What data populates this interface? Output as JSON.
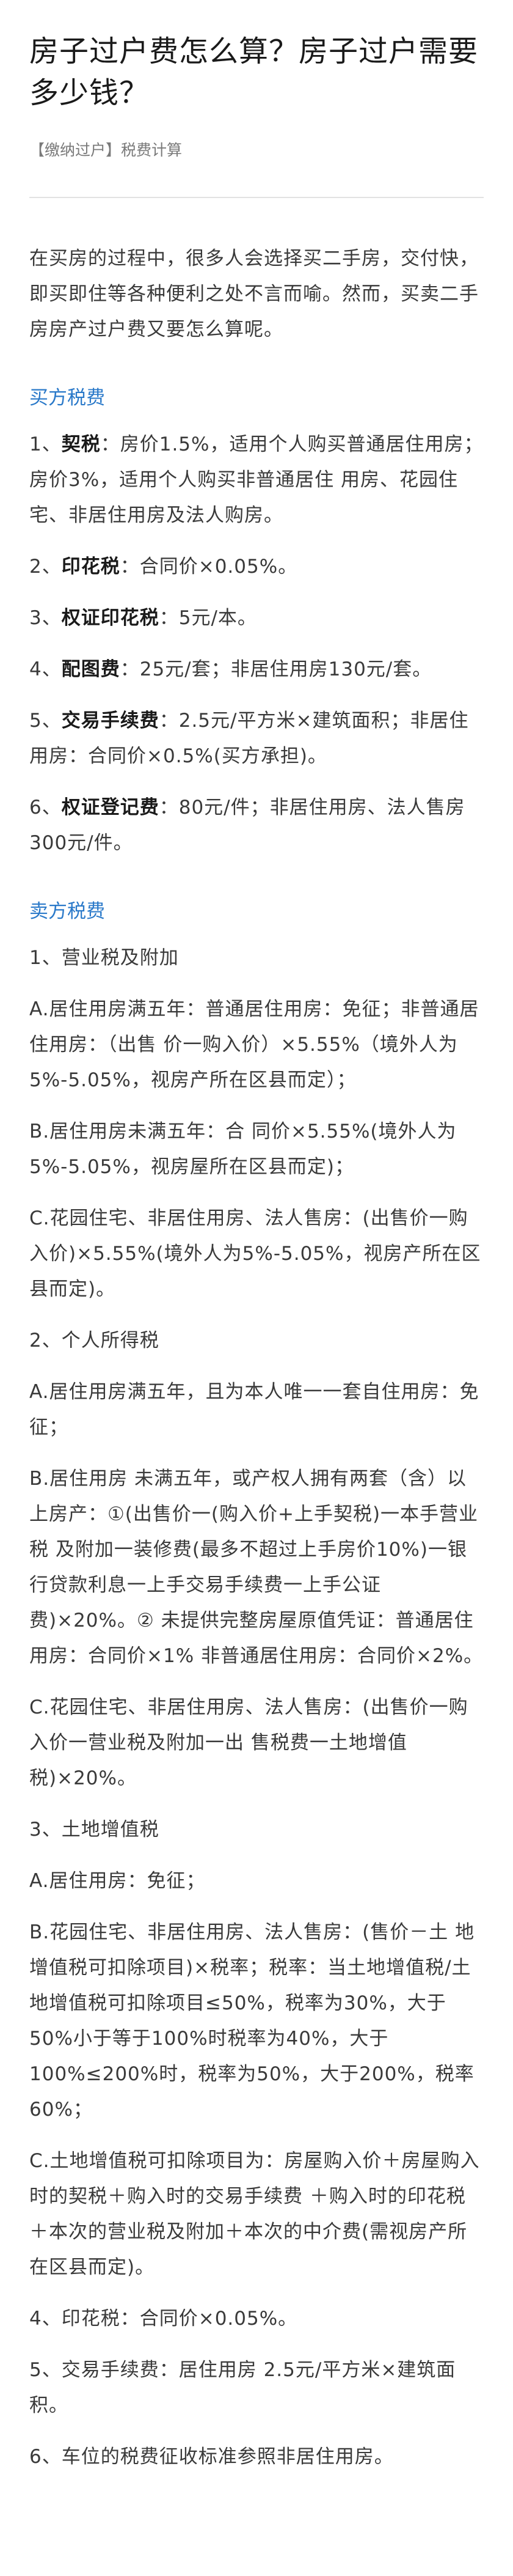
{
  "article": {
    "title": "房子过户费怎么算？房子过户需要多少钱？",
    "tag": "【缴纳过户】税费计算",
    "intro": "在买房的过程中，很多人会选择买二手房，交付快，即买即住等各种便利之处不言而喻。然而，买卖二手房房产过户费又要怎么算呢。"
  },
  "buyer": {
    "heading": "买方税费",
    "items": [
      {
        "num": "1、",
        "key": "契税",
        "text": "：房价1.5%，适用个人购买普通居住用房；房价3%，适用个人购买非普通居住 用房、花园住宅、非居住用房及法人购房。"
      },
      {
        "num": "2、",
        "key": "印花税",
        "text": "：合同价×0.05%。"
      },
      {
        "num": "3、",
        "key": "权证印花税",
        "text": "：5元/本。"
      },
      {
        "num": "4、",
        "key": "配图费",
        "text": "：25元/套；非居住用房130元/套。"
      },
      {
        "num": "5、",
        "key": "交易手续费",
        "text": "：2.5元/平方米×建筑面积；非居住用房：合同价×0.5%(买方承担)。"
      },
      {
        "num": "6、",
        "key": "权证登记费",
        "text": "：80元/件；非居住用房、法人售房300元/件。"
      }
    ]
  },
  "seller": {
    "heading": "卖方税费",
    "lines": [
      "1、营业税及附加",
      "A.居住用房满五年：普通居住用房：免征；非普通居住用房：（出售 价一购入价）×5.55%（境外人为5%-5.05%，视房产所在区县而定）；",
      "B.居住用房未满五年：合 同价×5.55%(境外人为5%-5.05%，视房屋所在区县而定)；",
      "C.花园住宅、非居住用房、法人售房：(出售价一购入价)×5.55%(境外人为5%-5.05%，视房产所在区县而定)。",
      "2、个人所得税",
      "A.居住用房满五年，且为本人唯一一套自住用房：免征；",
      "B.居住用房 未满五年，或产权人拥有两套（含）以上房产：①(出售价一(购入价+上手契税)一本手营业税 及附加一装修费(最多不超过上手房价10%)一银行贷款利息一上手交易手续费一上手公证 费)×20%。② 未提供完整房屋原值凭证：普通居住用房：合同价×1% 非普通居住用房：合同价×2%。",
      "C.花园住宅、非居住用房、法人售房：(出售价一购入价一营业税及附加一出 售税费一土地增值税)×20%。",
      "3、土地增值税",
      "A.居住用房：免征；",
      "B.花园住宅、非居住用房、法人售房：(售价－土 地增值税可扣除项目)×税率；税率：当土地增值税/土地增值税可扣除项目≤50%，税率为30%，大于50%小于等于100%时税率为40%，大于100%≤200%时，税率为50%，大于200%，税率 60%；",
      "C.土地增值税可扣除项目为：房屋购入价＋房屋购入时的契税＋购入时的交易手续费 ＋购入时的印花税＋本次的营业税及附加＋本次的中介费(需视房产所在区县而定)。",
      "4、印花税：合同价×0.05%。",
      "5、交易手续费：居住用房 2.5元/平方米×建筑面积。",
      "6、车位的税费征收标准参照非居住用房。"
    ]
  }
}
